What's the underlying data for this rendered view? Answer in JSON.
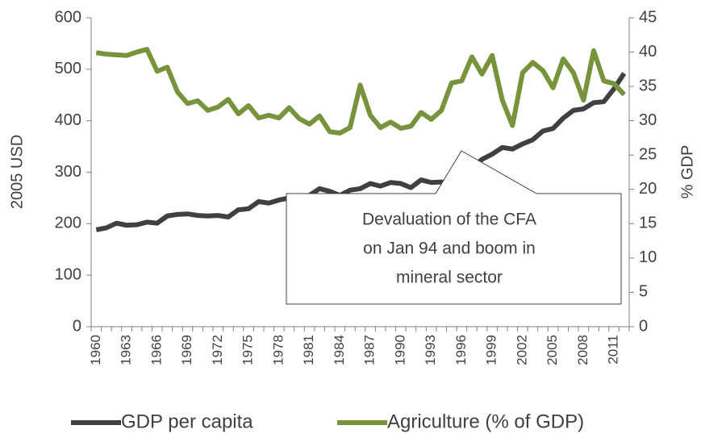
{
  "chart_data": {
    "type": "line",
    "categories": [
      "1960",
      null,
      null,
      "1963",
      null,
      null,
      "1966",
      null,
      null,
      "1969",
      null,
      null,
      "1972",
      null,
      null,
      "1975",
      null,
      null,
      "1978",
      null,
      null,
      "1981",
      null,
      null,
      "1984",
      null,
      null,
      "1987",
      null,
      null,
      "1990",
      null,
      null,
      "1993",
      null,
      null,
      "1996",
      null,
      null,
      "1999",
      null,
      null,
      "2002",
      null,
      null,
      "2005",
      null,
      null,
      "2008",
      null,
      null,
      "2011",
      null
    ],
    "series": [
      {
        "name": "GDP per capita",
        "color": "#404040",
        "axis": "y",
        "values": [
          188,
          192,
          201,
          197,
          198,
          203,
          201,
          215,
          218,
          219,
          216,
          215,
          216,
          213,
          227,
          229,
          243,
          240,
          246,
          250,
          252,
          255,
          268,
          263,
          255,
          265,
          268,
          278,
          273,
          280,
          278,
          270,
          285,
          280,
          281,
          278,
          285,
          308,
          325,
          335,
          348,
          345,
          355,
          363,
          380,
          385,
          405,
          420,
          423,
          435,
          437,
          462,
          492
        ]
      },
      {
        "name": "Agriculture (% of GDP)",
        "color": "#77933c",
        "axis": "y2",
        "values": [
          39.9,
          39.7,
          39.6,
          39.5,
          40.0,
          40.4,
          37.2,
          37.8,
          34.2,
          32.5,
          32.9,
          31.5,
          32.0,
          33.1,
          31.0,
          32.2,
          30.4,
          30.8,
          30.4,
          31.9,
          30.3,
          29.5,
          30.7,
          28.4,
          28.2,
          29.0,
          35.2,
          30.8,
          29.0,
          29.8,
          28.9,
          29.2,
          31.2,
          30.2,
          31.5,
          35.5,
          35.8,
          39.3,
          36.8,
          39.5,
          33.0,
          29.3,
          37.0,
          38.5,
          37.3,
          34.8,
          39.0,
          37.0,
          33.0,
          40.2,
          35.8,
          35.4,
          33.8
        ]
      }
    ],
    "ylabel": "2005 USD",
    "y2label": "% GDP",
    "ylim": [
      0,
      600
    ],
    "yticks": [
      0,
      100,
      200,
      300,
      400,
      500,
      600
    ],
    "y2lim": [
      0,
      45
    ],
    "y2ticks": [
      0,
      5,
      10,
      15,
      20,
      25,
      30,
      35,
      40,
      45
    ],
    "annotation": [
      "Devaluation of the CFA",
      "on Jan 94 and boom in",
      "mineral sector"
    ],
    "legend": "bottom",
    "grid": false
  }
}
